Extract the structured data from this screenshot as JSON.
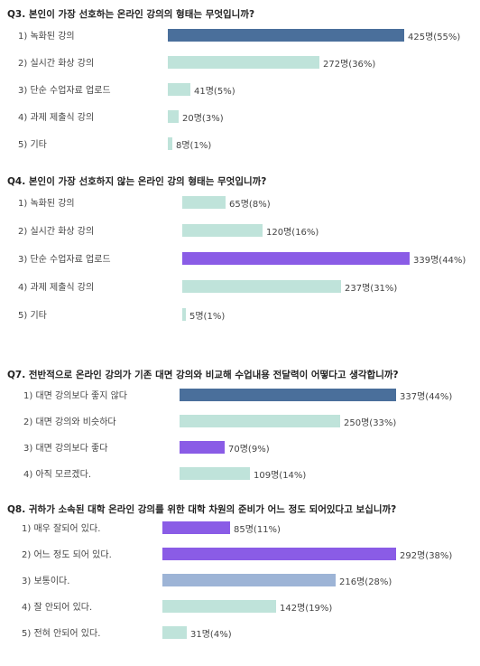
{
  "colors": {
    "dark_blue": "#4a6f9b",
    "teal": "#bfe3da",
    "purple": "#8a5ce6",
    "light_blue": "#9db4d6"
  },
  "chart_data": [
    {
      "type": "bar",
      "orientation": "horizontal",
      "title": "Q3. 본인이 가장 선호하는 온라인 강의의 형태는 무엇입니까?",
      "categories": [
        "1) 녹화된 강의",
        "2) 실시간 화상 강의",
        "3) 단순 수업자료 업로드",
        "4) 과제 제출식 강의",
        "5) 기타"
      ],
      "values": [
        425,
        272,
        41,
        20,
        8
      ],
      "labels": [
        "425명(55%)",
        "272명(36%)",
        "41명(5%)",
        "20명(3%)",
        "8명(1%)"
      ],
      "bar_colors": [
        "#4a6f9b",
        "#bfe3da",
        "#bfe3da",
        "#bfe3da",
        "#bfe3da"
      ]
    },
    {
      "type": "bar",
      "orientation": "horizontal",
      "title": "Q4. 본인이 가장 선호하지 않는 온라인 강의 형태는 무엇입니까?",
      "categories": [
        "1) 녹화된 강의",
        "2) 실시간 화상 강의",
        "3) 단순 수업자료 업로드",
        "4) 과제 제출식 강의",
        "5) 기타"
      ],
      "values": [
        65,
        120,
        339,
        237,
        5
      ],
      "labels": [
        "65명(8%)",
        "120명(16%)",
        "339명(44%)",
        "237명(31%)",
        "5명(1%)"
      ],
      "bar_colors": [
        "#bfe3da",
        "#bfe3da",
        "#8a5ce6",
        "#bfe3da",
        "#bfe3da"
      ]
    },
    {
      "type": "bar",
      "orientation": "horizontal",
      "title": "Q7. 전반적으로 온라인 강의가 기존 대면 강의와 비교해 수업내용 전달력이 어떻다고  생각합니까?",
      "categories": [
        "1) 대면 강의보다 좋지 않다",
        "2) 대면 강의와 비슷하다",
        "3) 대면 강의보다 좋다",
        "4) 아직 모르겠다."
      ],
      "values": [
        337,
        250,
        70,
        109
      ],
      "labels": [
        "337명(44%)",
        "250명(33%)",
        "70명(9%)",
        "109명(14%)"
      ],
      "bar_colors": [
        "#4a6f9b",
        "#bfe3da",
        "#8a5ce6",
        "#bfe3da"
      ]
    },
    {
      "type": "bar",
      "orientation": "horizontal",
      "title": "Q8. 귀하가 소속된 대학 온라인 강의를 위한 대학 차원의 준비가 어느 정도 되어있다고 보십니까?",
      "categories": [
        "1) 매우 잘되어 있다.",
        "2) 어느 정도 되어 있다.",
        "3) 보통이다.",
        "4) 잘 안되어 있다.",
        "5) 전혀 안되어 있다."
      ],
      "values": [
        85,
        292,
        216,
        142,
        31
      ],
      "labels": [
        "85명(11%)",
        "292명(38%)",
        "216명(28%)",
        "142명(19%)",
        "31명(4%)"
      ],
      "bar_colors": [
        "#8a5ce6",
        "#8a5ce6",
        "#9db4d6",
        "#bfe3da",
        "#bfe3da"
      ]
    }
  ]
}
